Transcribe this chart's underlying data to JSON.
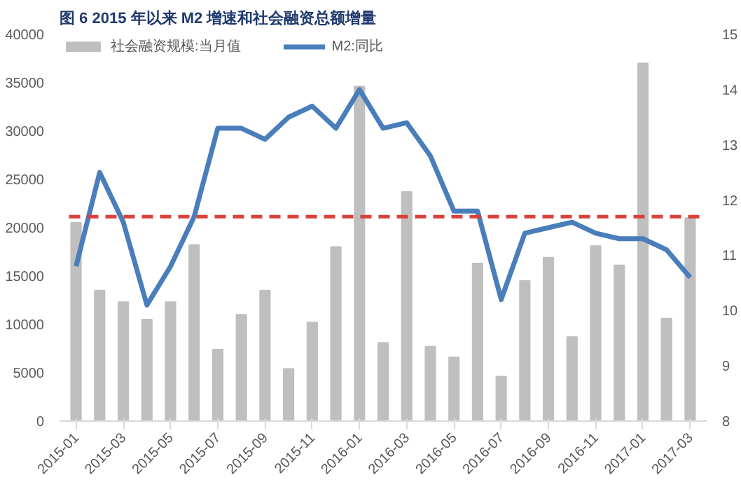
{
  "chart_data": {
    "type": "bar",
    "title": "图 6 2015 年以来 M2 增速和社会融资总额增量",
    "categories": [
      "2015-01",
      null,
      "2015-03",
      null,
      "2015-05",
      null,
      "2015-07",
      null,
      "2015-09",
      null,
      "2015-11",
      null,
      "2016-01",
      null,
      "2016-03",
      null,
      "2016-05",
      null,
      "2016-07",
      null,
      "2016-09",
      null,
      "2016-11",
      null,
      "2017-01",
      null,
      "2017-03"
    ],
    "series": [
      {
        "name": "社会融资规模:当月值",
        "color": "#bfbfbf",
        "values": [
          20500,
          13500,
          12300,
          10500,
          12300,
          18200,
          7400,
          11000,
          13500,
          5400,
          10200,
          18000,
          34600,
          8100,
          23700,
          7700,
          6600,
          16300,
          4600,
          14500,
          16900,
          8700,
          18100,
          16100,
          37000,
          10600,
          21000
        ]
      },
      {
        "name": "M2:同比",
        "type": "line",
        "axis": "y2",
        "color": "#4a7ebb",
        "values": [
          10.8,
          12.5,
          11.6,
          10.1,
          10.8,
          11.7,
          13.3,
          13.3,
          13.1,
          13.5,
          13.7,
          13.3,
          14.0,
          13.3,
          13.4,
          12.8,
          11.8,
          11.8,
          10.2,
          11.4,
          11.5,
          11.6,
          11.4,
          11.3,
          11.3,
          11.1,
          10.6
        ]
      }
    ],
    "ylim": [
      0,
      40000
    ],
    "yticks": [
      0,
      5000,
      10000,
      15000,
      20000,
      25000,
      30000,
      35000,
      40000
    ],
    "y2lim": [
      8,
      15
    ],
    "y2ticks": [
      8,
      9,
      10,
      11,
      12,
      13,
      14,
      15
    ],
    "ref_lines": [
      {
        "axis": "y2",
        "value": 11.7,
        "color": "#d9413a",
        "line_style": "dashed"
      }
    ],
    "legend": "top",
    "grid": false
  }
}
